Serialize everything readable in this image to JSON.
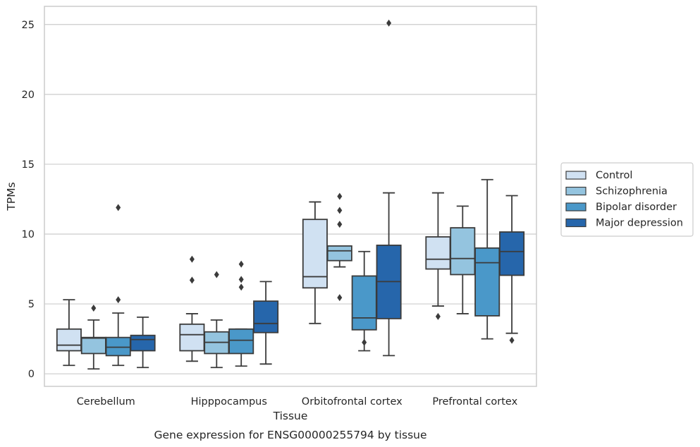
{
  "chart_data": {
    "type": "boxplot",
    "title": "",
    "caption": "Gene expression for ENSG00000255794 by tissue",
    "xlabel": "Tissue",
    "ylabel": "TPMs",
    "ylim": [
      -0.9,
      26.3
    ],
    "yticks": [
      0,
      5,
      10,
      15,
      20,
      25
    ],
    "grid": "horizontal",
    "legend_position": "right",
    "categories": [
      "Cerebellum",
      "Hipppocampus",
      "Orbitofrontal cortex",
      "Prefrontal cortex"
    ],
    "series": [
      {
        "name": "Control",
        "color": "#d0e1f2",
        "boxes": [
          {
            "whislo": 0.6,
            "q1": 1.65,
            "med": 2.05,
            "q3": 3.2,
            "whishi": 5.3,
            "fliers": []
          },
          {
            "whislo": 0.9,
            "q1": 1.65,
            "med": 2.8,
            "q3": 3.55,
            "whishi": 4.3,
            "fliers": [
              6.7,
              8.2
            ]
          },
          {
            "whislo": 3.6,
            "q1": 6.15,
            "med": 6.95,
            "q3": 11.05,
            "whishi": 12.3,
            "fliers": []
          },
          {
            "whislo": 4.85,
            "q1": 7.5,
            "med": 8.2,
            "q3": 9.8,
            "whishi": 12.95,
            "fliers": [
              4.1
            ]
          }
        ]
      },
      {
        "name": "Schizophrenia",
        "color": "#94c4df",
        "boxes": [
          {
            "whislo": 0.35,
            "q1": 1.45,
            "med": 2.55,
            "q3": 2.6,
            "whishi": 3.85,
            "fliers": [
              4.7
            ]
          },
          {
            "whislo": 0.45,
            "q1": 1.45,
            "med": 2.25,
            "q3": 3.0,
            "whishi": 3.85,
            "fliers": [
              7.1
            ]
          },
          {
            "whislo": 7.65,
            "q1": 8.1,
            "med": 8.8,
            "q3": 9.15,
            "whishi": 9.15,
            "fliers": [
              5.45,
              10.7,
              11.7,
              12.7
            ]
          },
          {
            "whislo": 4.3,
            "q1": 7.1,
            "med": 8.25,
            "q3": 10.45,
            "whishi": 12.0,
            "fliers": []
          }
        ]
      },
      {
        "name": "Bipolar disorder",
        "color": "#4a98c9",
        "boxes": [
          {
            "whislo": 0.6,
            "q1": 1.3,
            "med": 1.9,
            "q3": 2.6,
            "whishi": 4.35,
            "fliers": [
              5.3,
              11.9
            ]
          },
          {
            "whislo": 0.55,
            "q1": 1.45,
            "med": 2.4,
            "q3": 3.2,
            "whishi": 3.2,
            "fliers": [
              6.2,
              6.75,
              7.85
            ]
          },
          {
            "whislo": 1.65,
            "q1": 3.15,
            "med": 4.0,
            "q3": 7.0,
            "whishi": 8.75,
            "fliers": [
              2.25
            ]
          },
          {
            "whislo": 2.5,
            "q1": 4.15,
            "med": 7.95,
            "q3": 9.0,
            "whishi": 13.9,
            "fliers": []
          }
        ]
      },
      {
        "name": "Major depression",
        "color": "#2666ab",
        "boxes": [
          {
            "whislo": 0.45,
            "q1": 1.65,
            "med": 2.45,
            "q3": 2.75,
            "whishi": 4.05,
            "fliers": []
          },
          {
            "whislo": 0.7,
            "q1": 2.95,
            "med": 3.6,
            "q3": 5.2,
            "whishi": 6.6,
            "fliers": []
          },
          {
            "whislo": 1.3,
            "q1": 3.95,
            "med": 6.6,
            "q3": 9.2,
            "whishi": 12.95,
            "fliers": [
              25.1
            ]
          },
          {
            "whislo": 2.9,
            "q1": 7.05,
            "med": 8.75,
            "q3": 10.15,
            "whishi": 12.75,
            "fliers": [
              2.4
            ]
          }
        ]
      }
    ]
  }
}
